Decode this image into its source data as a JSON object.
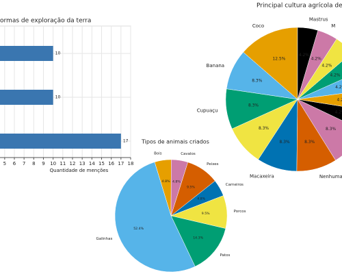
{
  "chart_data": [
    {
      "type": "barh",
      "title": "ormas de exploração da terra",
      "xlabel": "Quantidade de menções",
      "categories": [
        null,
        null,
        null
      ],
      "values": [
        10,
        10,
        17
      ],
      "color": "#3a76b0",
      "xlim": [
        0,
        18
      ],
      "xticks": [
        5,
        6,
        7,
        8,
        9,
        10,
        11,
        12,
        13,
        14,
        15,
        16,
        17,
        18
      ],
      "grid": true
    },
    {
      "type": "pie",
      "title": "Principal cultura agrícola dec",
      "categories": [
        "Coco",
        "Banana",
        "Cupuaçu",
        null,
        "Macaxeira",
        "Nenhuma",
        null,
        null,
        null,
        null,
        null,
        null,
        "M",
        "Mastrus"
      ],
      "values": [
        12.5,
        8.3,
        8.3,
        8.3,
        8.3,
        8.3,
        8.3,
        4.2,
        4.2,
        4.2,
        4.2,
        4.2,
        4.2,
        4.2
      ],
      "value_labels": [
        "12.5%",
        "8.3%",
        "8.3%",
        "8.3%",
        "8.3%",
        "8.3%",
        "8.3%",
        "4.2%",
        "4.2%",
        "4.2%",
        "4.2%",
        "4.2%",
        "4.2%",
        "4.2%"
      ],
      "colors": [
        "#e69f00",
        "#56b4e9",
        "#009e73",
        "#f0e442",
        "#0072b2",
        "#d55e00",
        "#cc79a7",
        "#000000",
        "#e69f00",
        "#56b4e9",
        "#009e73",
        "#f0e442",
        "#cc79a7",
        "#000000"
      ]
    },
    {
      "type": "pie",
      "title": "Tipos de animais criados",
      "categories": [
        "Bois",
        "Cavalos",
        "Peixes",
        "Carneiros",
        "Porcos",
        "Patos",
        "Galinhas"
      ],
      "values": [
        4.8,
        4.8,
        9.5,
        4.8,
        9.5,
        14.3,
        52.4
      ],
      "value_labels": [
        "4.8%",
        "4.8%",
        "9.5%",
        "4.8%",
        "9.5%",
        "14.3%",
        "52.4%"
      ],
      "colors": [
        "#e69f00",
        "#cc79a7",
        "#d55e00",
        "#0072b2",
        "#f0e442",
        "#009e73",
        "#56b4e9"
      ]
    }
  ]
}
